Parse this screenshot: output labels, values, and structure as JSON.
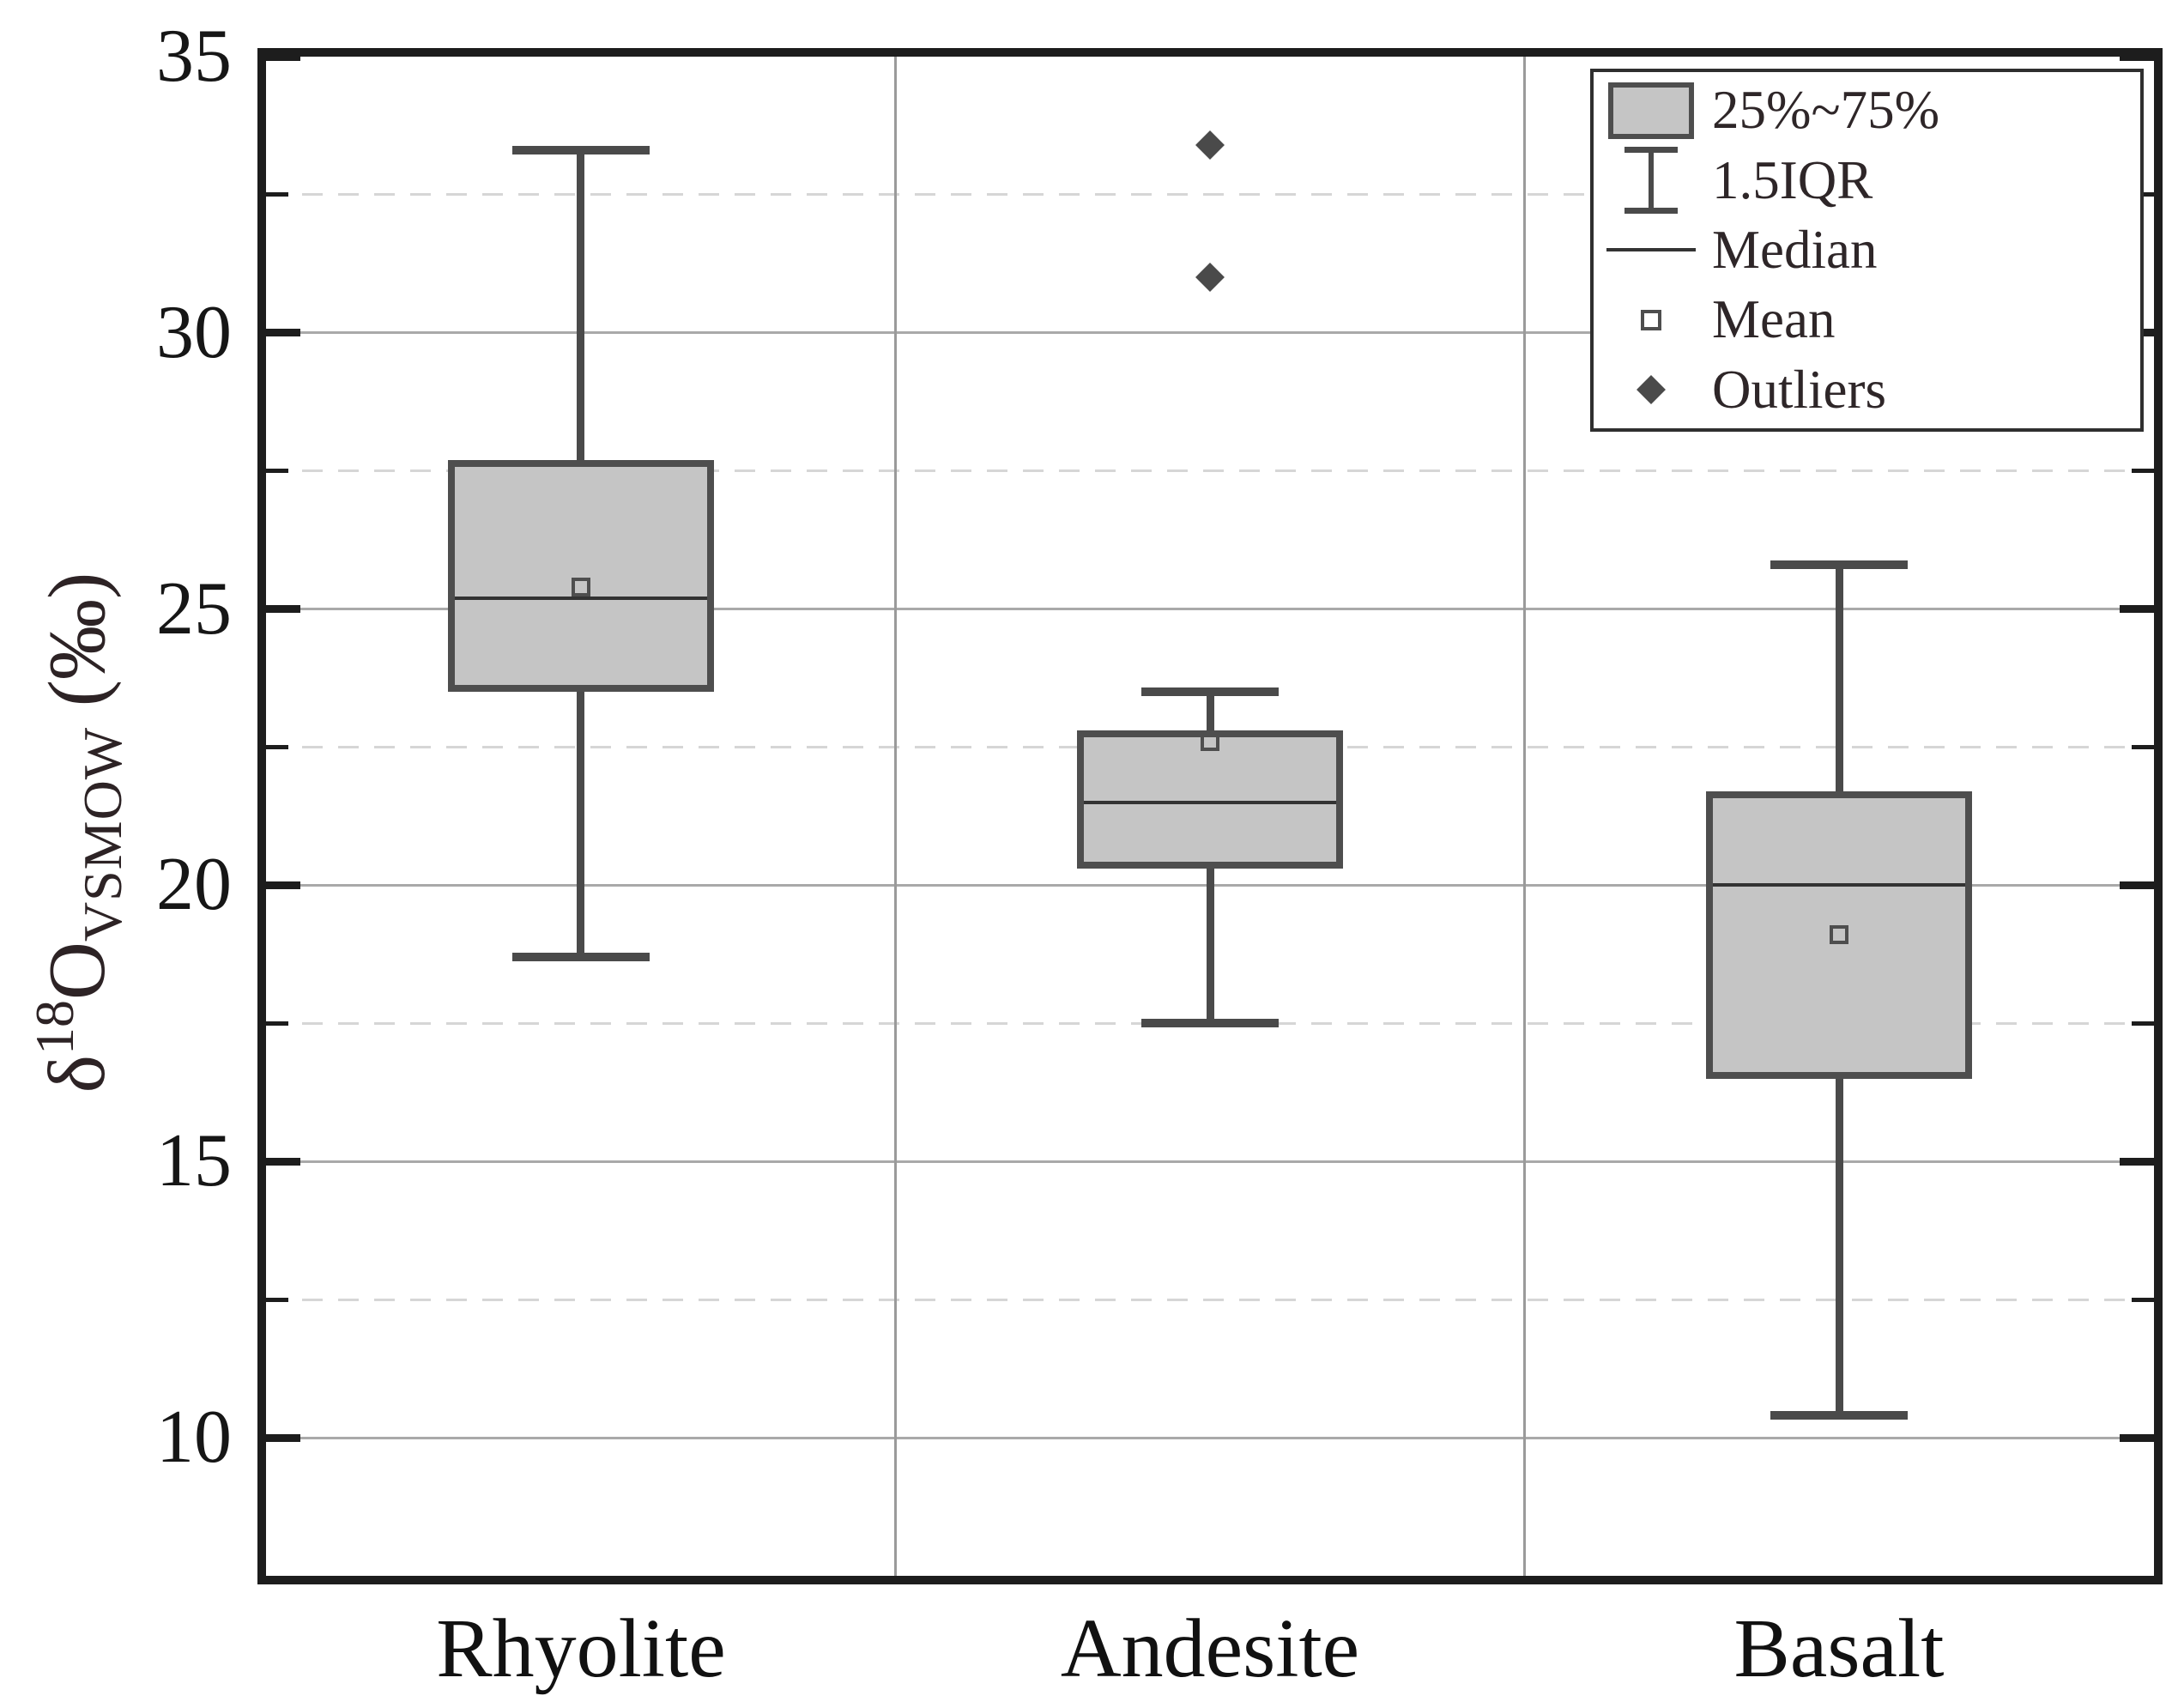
{
  "figure": {
    "background": "#ffffff",
    "kind": "statistical box plot"
  },
  "chart_data": {
    "type": "boxplot",
    "title": "",
    "xlabel": "",
    "ylabel": "δ18O VSMOW (‰)",
    "ylabel_parts": {
      "delta": "δ",
      "isotope": "18",
      "element": "O",
      "standard": "VSMOW",
      "unit": "(‰)"
    },
    "ylim": [
      7.5,
      35
    ],
    "yticks_major": [
      {
        "value": 35,
        "label": "35"
      },
      {
        "value": 30,
        "label": "30"
      },
      {
        "value": 25,
        "label": "25"
      },
      {
        "value": 20,
        "label": "20"
      },
      {
        "value": 15,
        "label": "15"
      },
      {
        "value": 10,
        "label": "10"
      }
    ],
    "yticks_minor": [
      32.5,
      27.5,
      22.5,
      17.5,
      12.5
    ],
    "gridlines_solid": [
      30,
      25,
      20,
      15,
      10
    ],
    "gridlines_dashed": [
      32.5,
      27.5,
      22.5,
      17.5,
      12.5
    ],
    "grid": "major solid, minor dashed, vertical category separators",
    "legend_position": "top-right",
    "categories": [
      "Rhyolite",
      "Andesite",
      "Basalt"
    ],
    "series": [
      {
        "name": "Rhyolite",
        "whisker_low": 18.7,
        "q1": 23.5,
        "median": 25.2,
        "mean": 25.4,
        "q3": 27.7,
        "whisker_high": 33.3,
        "outliers": []
      },
      {
        "name": "Andesite",
        "whisker_low": 17.5,
        "q1": 20.3,
        "median": 21.5,
        "mean": 22.6,
        "q3": 22.8,
        "whisker_high": 23.5,
        "outliers": [
          31.0,
          33.4
        ]
      },
      {
        "name": "Basalt",
        "whisker_low": 10.4,
        "q1": 16.5,
        "median": 20.0,
        "mean": 19.1,
        "q3": 21.7,
        "whisker_high": 25.8,
        "outliers": []
      }
    ],
    "legend_entries": [
      {
        "glyph": "box-swatch",
        "label": "25%~75%"
      },
      {
        "glyph": "whisker",
        "label": "1.5IQR"
      },
      {
        "glyph": "line",
        "label": "Median"
      },
      {
        "glyph": "open-square",
        "label": "Mean"
      },
      {
        "glyph": "diamond",
        "label": "Outliers"
      }
    ],
    "colors": {
      "box_fill": "#c5c5c5",
      "box_border": "#4e4e4e",
      "whisker": "#4a4a4a",
      "median_line": "#333333",
      "mean_marker": "#4e4e4e",
      "outlier_marker": "#4a4a4a",
      "grid_major": "#a9a9a9",
      "grid_minor": "#d6d6d6",
      "category_separator": "#9a9a9a",
      "axis_spine": "#1d1d1d",
      "tick_text": "#161616",
      "label_text": "#2d2325"
    }
  }
}
